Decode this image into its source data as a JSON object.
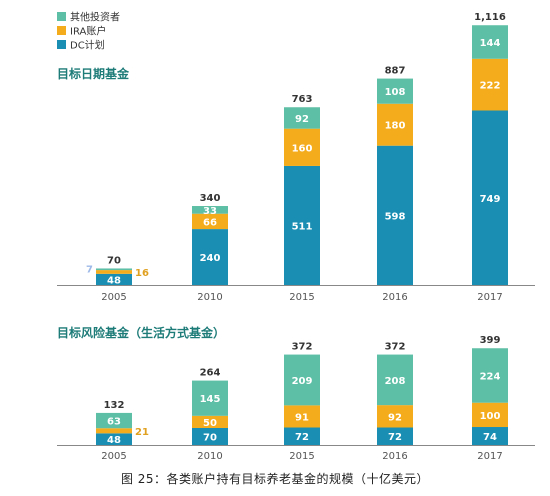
{
  "colors": {
    "dc": "#1a8fb3",
    "ira": "#f5ac1c",
    "other": "#5dbfa5",
    "title": "#1d7b78"
  },
  "legend": [
    {
      "name": "其他投资者",
      "color": "#5dbfa5"
    },
    {
      "name": "IRA账户",
      "color": "#f5ac1c"
    },
    {
      "name": "DC计划",
      "color": "#1a8fb3"
    }
  ],
  "caption": "图 25：各类账户持有目标养老基金的规模（十亿美元）",
  "chart_data": [
    {
      "type": "bar",
      "stacked": true,
      "title": "目标日期基金",
      "categories": [
        "2005",
        "2010",
        "2015",
        "2016",
        "2017"
      ],
      "series": [
        {
          "name": "DC计划",
          "values": [
            48,
            240,
            511,
            598,
            749
          ]
        },
        {
          "name": "IRA账户",
          "values": [
            16,
            66,
            160,
            180,
            222
          ]
        },
        {
          "name": "其他投资者",
          "values": [
            7,
            33,
            92,
            108,
            144
          ]
        }
      ],
      "totals": [
        "70",
        "340",
        "763",
        "887",
        "1,116"
      ]
    },
    {
      "type": "bar",
      "stacked": true,
      "title": "目标风险基金（生活方式基金）",
      "categories": [
        "2005",
        "2010",
        "2015",
        "2016",
        "2017"
      ],
      "series": [
        {
          "name": "DC计划",
          "values": [
            48,
            70,
            72,
            72,
            74
          ]
        },
        {
          "name": "IRA账户",
          "values": [
            21,
            50,
            91,
            92,
            100
          ]
        },
        {
          "name": "其他投资者",
          "values": [
            63,
            145,
            209,
            208,
            224
          ]
        }
      ],
      "totals": [
        "132",
        "264",
        "372",
        "372",
        "399"
      ]
    }
  ]
}
